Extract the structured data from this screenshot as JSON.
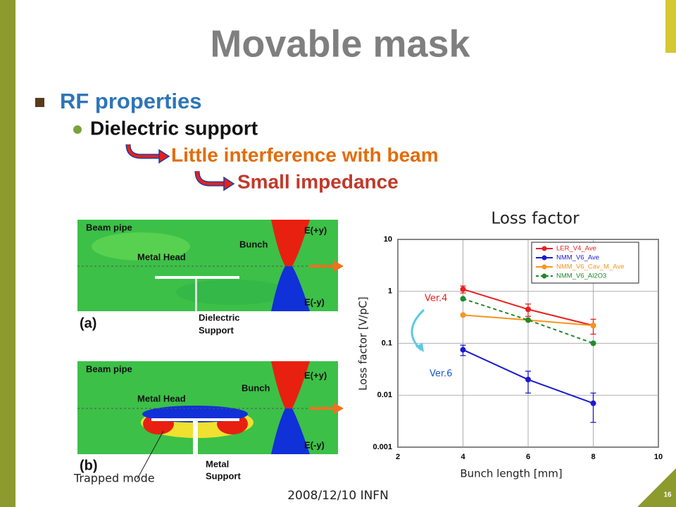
{
  "slide": {
    "title": "Movable mask",
    "bullet1": "RF properties",
    "bullet2": "Dielectric support",
    "arrow1": "Little interference with beam",
    "arrow2": "Small impedance",
    "footer": "2008/12/10 INFN",
    "page": "16",
    "sim_a": {
      "beam_pipe": "Beam pipe",
      "e_plus": "E(+y)",
      "bunch": "Bunch",
      "metal_head": "Metal Head",
      "e_minus": "E(-y)",
      "support": [
        "Dielectric",
        "Support"
      ],
      "tag": "(a)"
    },
    "sim_b": {
      "beam_pipe": "Beam pipe",
      "e_plus": "E(+y)",
      "bunch": "Bunch",
      "metal_head": "Metal Head",
      "e_minus": "E(-y)",
      "support": [
        "Metal",
        "Support"
      ],
      "tag": "(b)",
      "trapped": "Trapped mode"
    }
  },
  "chart_data": {
    "type": "line",
    "title": "Loss factor",
    "x_label": "Bunch length [mm]",
    "y_label": "Loss factor [V/pC]",
    "xlim": [
      2,
      10
    ],
    "xticks": [
      2,
      4,
      6,
      8,
      10
    ],
    "ylim": [
      0.001,
      10
    ],
    "yticks": [
      10,
      1,
      0.1,
      0.01,
      0.001
    ],
    "y_log": true,
    "grid": true,
    "legend": "upper right",
    "annotations": [
      "Ver.4",
      "Ver.6"
    ],
    "series": [
      {
        "name": "LER_V4_Ave",
        "color": "#e8201e",
        "linestyle": "solid",
        "x": [
          4,
          6,
          8
        ],
        "values": [
          1.1,
          0.45,
          0.22
        ],
        "errors": [
          0.17,
          0.12,
          0.07
        ]
      },
      {
        "name": "NMM_V6_Ave",
        "color": "#1a1ad0",
        "linestyle": "solid",
        "x": [
          4,
          6,
          8
        ],
        "values": [
          0.075,
          0.02,
          0.007
        ],
        "errors": [
          0.017,
          0.009,
          0.004
        ]
      },
      {
        "name": "NMM_V6_Cav_M_Ave",
        "color": "#f7941d",
        "linestyle": "solid",
        "x": [
          4,
          6,
          8
        ],
        "values": [
          0.35,
          0.28,
          0.22
        ]
      },
      {
        "name": "NMM_V6_Al2O3",
        "color": "#1e8a2a",
        "linestyle": "dashed",
        "x": [
          4,
          6,
          8
        ],
        "values": [
          0.72,
          0.28,
          0.1
        ]
      }
    ]
  }
}
